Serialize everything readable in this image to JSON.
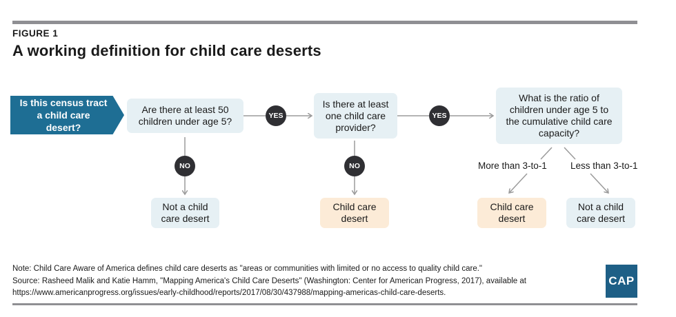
{
  "figure_label": "FIGURE 1",
  "title": "A working definition for child care deserts",
  "start": "Is this census tract a child care desert?",
  "q1": "Are there at least 50 children under age 5?",
  "q2": "Is there at least one child care provider?",
  "q3": "What is the ratio of children under age 5 to the cumulative child care capacity?",
  "yes_label": "YES",
  "no_label": "NO",
  "outcome_not_desert_1": "Not a child care desert",
  "outcome_desert_1": "Child care desert",
  "outcome_desert_2": "Child care desert",
  "outcome_not_desert_2": "Not a child care desert",
  "branch_more": "More than 3-to-1",
  "branch_less": "Less than 3-to-1",
  "note": "Note: Child Care Aware of America defines child care deserts as \"areas or communities with limited or no access to quality child care.\"",
  "source": "Source: Rasheed Malik and Katie Hamm, \"Mapping America's Child Care Deserts\" (Washington: Center for American Progress, 2017), available at",
  "source_url": "https://www.americanprogress.org/issues/early-childhood/reports/2017/08/30/437988/mapping-americas-child-care-deserts.",
  "logo_text": "CAP",
  "colors": {
    "start_arrow": "#1e6e94",
    "question_box": "#e6f0f4",
    "desert_box": "#fcebd7",
    "decision_circle": "#2f2f33",
    "logo": "#1e5f86"
  }
}
